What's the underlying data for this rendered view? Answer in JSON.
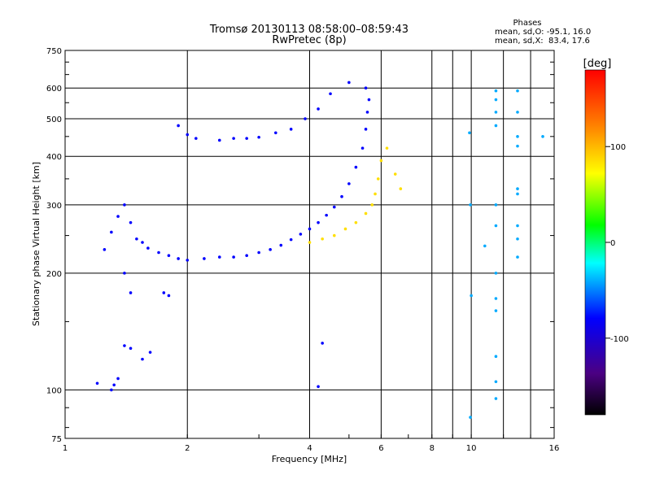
{
  "chart_data": {
    "type": "scatter",
    "title": "Tromsø 20130113 08:58:00–08:59:43",
    "subtitle": "RwPretec (8p)",
    "xlabel": "Frequency [MHz]",
    "ylabel": "Stationary phase Virtual Height [km]",
    "x_scale": "log",
    "y_scale": "log",
    "xlim": [
      1,
      16
    ],
    "ylim": [
      75,
      750
    ],
    "x_ticks": [
      1,
      2,
      4,
      6,
      8,
      10,
      16
    ],
    "x_tick_labels": [
      "1",
      "2",
      "4",
      "6",
      "8",
      "10",
      "16"
    ],
    "x_minor_gridlines": [
      9,
      12,
      14
    ],
    "y_ticks": [
      75,
      100,
      200,
      300,
      400,
      500,
      600,
      750
    ],
    "y_tick_labels": [
      "75",
      "100",
      "200",
      "300",
      "400",
      "500",
      "600",
      "750"
    ],
    "grid": true,
    "phase_stats": {
      "title": "Phases",
      "line_o": "mean, sd,O: -95.1, 16.0",
      "line_x": "mean, sd,X:  83.4, 17.6"
    },
    "colorbar": {
      "label": "[deg]",
      "range": [
        -180,
        180
      ],
      "ticks": [
        100,
        0,
        -100
      ],
      "tick_labels": [
        "100",
        "0",
        "-100"
      ],
      "colormap": "rainbow"
    },
    "series": [
      {
        "trace": "o-mode dense band (F region)",
        "color_phase_deg": -100,
        "points": [
          [
            1.25,
            230
          ],
          [
            1.3,
            255
          ],
          [
            1.35,
            280
          ],
          [
            1.4,
            300
          ],
          [
            1.45,
            270
          ],
          [
            1.5,
            245
          ],
          [
            1.55,
            240
          ],
          [
            1.6,
            232
          ],
          [
            1.7,
            226
          ],
          [
            1.8,
            222
          ],
          [
            1.9,
            218
          ],
          [
            2.0,
            216
          ],
          [
            2.2,
            218
          ],
          [
            2.4,
            220
          ],
          [
            2.6,
            220
          ],
          [
            2.8,
            222
          ],
          [
            3.0,
            226
          ],
          [
            3.2,
            230
          ],
          [
            3.4,
            236
          ],
          [
            3.6,
            244
          ],
          [
            3.8,
            252
          ],
          [
            4.0,
            260
          ],
          [
            4.2,
            270
          ],
          [
            4.4,
            282
          ],
          [
            4.6,
            296
          ],
          [
            4.8,
            315
          ],
          [
            5.0,
            340
          ],
          [
            5.2,
            375
          ],
          [
            5.4,
            420
          ],
          [
            5.5,
            470
          ],
          [
            5.55,
            520
          ],
          [
            5.6,
            560
          ]
        ]
      },
      {
        "trace": "o-mode upper layer",
        "color_phase_deg": -100,
        "points": [
          [
            1.9,
            480
          ],
          [
            2.0,
            455
          ],
          [
            2.1,
            445
          ],
          [
            2.4,
            440
          ],
          [
            2.6,
            445
          ],
          [
            2.8,
            445
          ],
          [
            3.0,
            448
          ],
          [
            3.3,
            460
          ],
          [
            3.6,
            470
          ],
          [
            3.9,
            500
          ],
          [
            4.2,
            530
          ],
          [
            4.5,
            580
          ],
          [
            5.0,
            620
          ],
          [
            5.5,
            600
          ]
        ]
      },
      {
        "trace": "x-mode band",
        "color_phase_deg": 85,
        "points": [
          [
            4.0,
            240
          ],
          [
            4.3,
            245
          ],
          [
            4.6,
            250
          ],
          [
            4.9,
            260
          ],
          [
            5.2,
            270
          ],
          [
            5.5,
            285
          ],
          [
            5.7,
            300
          ],
          [
            5.8,
            320
          ],
          [
            5.9,
            350
          ],
          [
            6.0,
            390
          ],
          [
            6.2,
            420
          ],
          [
            6.5,
            360
          ],
          [
            6.7,
            330
          ]
        ]
      },
      {
        "trace": "low-altitude echoes",
        "color_phase_deg": -100,
        "points": [
          [
            1.2,
            104
          ],
          [
            1.3,
            100
          ],
          [
            1.32,
            103
          ],
          [
            1.35,
            107
          ],
          [
            1.4,
            130
          ],
          [
            1.45,
            128
          ],
          [
            1.55,
            120
          ],
          [
            1.62,
            125
          ],
          [
            1.75,
            178
          ],
          [
            1.8,
            175
          ],
          [
            1.4,
            200
          ],
          [
            1.45,
            178
          ],
          [
            4.2,
            102
          ],
          [
            4.3,
            132
          ]
        ]
      },
      {
        "trace": "scattered high-frequency echoes",
        "color_phase_deg": -60,
        "points": [
          [
            9.9,
            460
          ],
          [
            9.95,
            300
          ],
          [
            10.0,
            175
          ],
          [
            9.95,
            85
          ],
          [
            11.5,
            590
          ],
          [
            11.5,
            560
          ],
          [
            11.5,
            520
          ],
          [
            11.5,
            480
          ],
          [
            11.5,
            300
          ],
          [
            11.5,
            265
          ],
          [
            11.5,
            200
          ],
          [
            11.5,
            172
          ],
          [
            11.5,
            160
          ],
          [
            11.5,
            122
          ],
          [
            11.5,
            105
          ],
          [
            11.5,
            95
          ],
          [
            13.0,
            590
          ],
          [
            13.0,
            520
          ],
          [
            13.0,
            450
          ],
          [
            13.0,
            425
          ],
          [
            13.0,
            330
          ],
          [
            13.0,
            320
          ],
          [
            13.0,
            265
          ],
          [
            13.0,
            245
          ],
          [
            13.0,
            220
          ],
          [
            10.8,
            235
          ],
          [
            15.0,
            450
          ]
        ]
      }
    ]
  }
}
